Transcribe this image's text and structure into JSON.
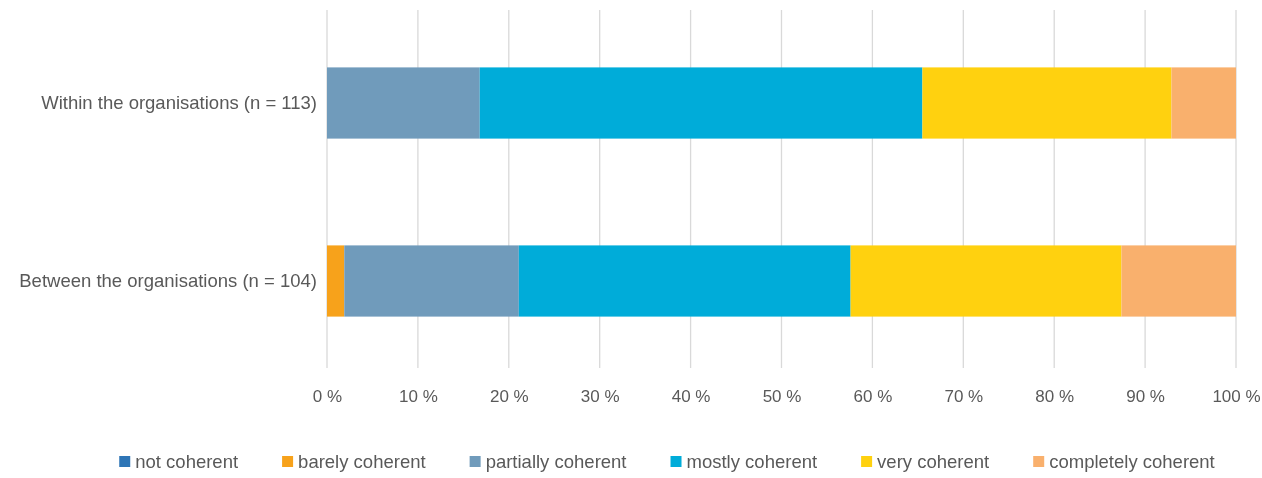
{
  "chart_data": {
    "type": "bar",
    "orientation": "horizontal",
    "stacked": true,
    "categories": [
      "Within the organisations (n = 113)",
      "Between the organisations (n = 104)"
    ],
    "series": [
      {
        "name": "not coherent",
        "color": "#2e75b6",
        "values": [
          0,
          0
        ]
      },
      {
        "name": "barely coherent",
        "color": "#f7a21b",
        "values": [
          0,
          1.9
        ]
      },
      {
        "name": "partially coherent",
        "color": "#709bbb",
        "values": [
          16.8,
          19.2
        ]
      },
      {
        "name": "mostly coherent",
        "color": "#00acd9",
        "values": [
          48.7,
          36.5
        ]
      },
      {
        "name": "very coherent",
        "color": "#ffd10f",
        "values": [
          27.4,
          29.8
        ]
      },
      {
        "name": "completely coherent",
        "color": "#f9b06d",
        "values": [
          7.1,
          12.6
        ]
      }
    ],
    "xlim": [
      0,
      100
    ],
    "xticks": [
      {
        "value": 0,
        "label": "0 %"
      },
      {
        "value": 10,
        "label": "10 %"
      },
      {
        "value": 20,
        "label": "20 %"
      },
      {
        "value": 30,
        "label": "30 %"
      },
      {
        "value": 40,
        "label": "40 %"
      },
      {
        "value": 50,
        "label": "50 %"
      },
      {
        "value": 60,
        "label": "60 %"
      },
      {
        "value": 70,
        "label": "70 %"
      },
      {
        "value": 80,
        "label": "80 %"
      },
      {
        "value": 90,
        "label": "90 %"
      },
      {
        "value": 100,
        "label": "100 %"
      }
    ],
    "grid": "x",
    "legend": "bottom"
  }
}
